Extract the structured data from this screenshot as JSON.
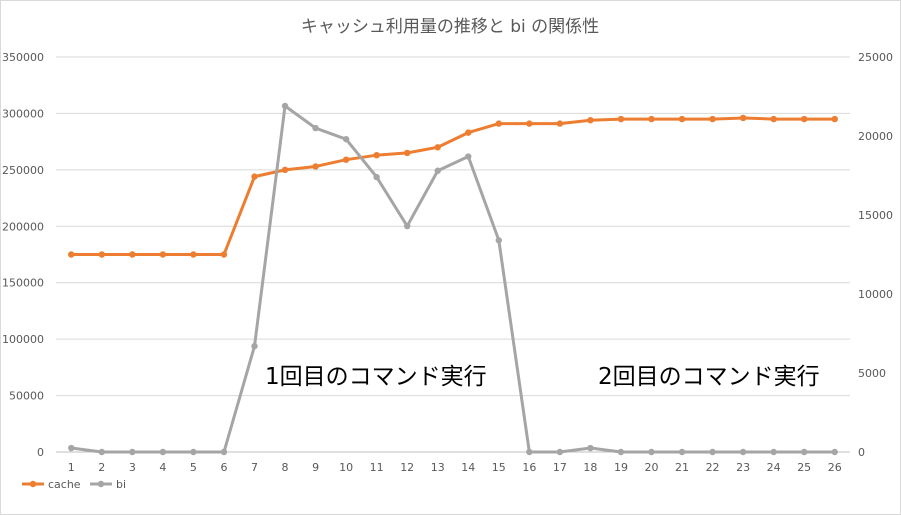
{
  "chart_data": {
    "type": "line",
    "title": "キャッシュ利用量の推移と bi の関係性",
    "x": [
      "1",
      "2",
      "3",
      "4",
      "5",
      "6",
      "7",
      "8",
      "9",
      "10",
      "11",
      "12",
      "13",
      "14",
      "15",
      "16",
      "17",
      "18",
      "19",
      "20",
      "21",
      "22",
      "23",
      "24",
      "25",
      "26"
    ],
    "series": [
      {
        "name": "cache",
        "axis": "left",
        "color": "#ED7D31",
        "values": [
          175000,
          175000,
          175000,
          175000,
          175000,
          175000,
          244000,
          250000,
          253000,
          259000,
          263000,
          265000,
          270000,
          283000,
          291000,
          291000,
          291000,
          294000,
          295000,
          295000,
          295000,
          295000,
          296000,
          295000,
          295000,
          295000
        ]
      },
      {
        "name": "bi",
        "axis": "right",
        "color": "#A5A5A5",
        "values": [
          250,
          0,
          0,
          0,
          0,
          0,
          6700,
          21900,
          20500,
          19800,
          17400,
          14300,
          17800,
          18700,
          13400,
          0,
          0,
          250,
          0,
          0,
          0,
          0,
          0,
          0,
          0,
          0
        ]
      }
    ],
    "y_left": {
      "min": 0,
      "max": 350000,
      "ticks": [
        "0",
        "50000",
        "100000",
        "150000",
        "200000",
        "250000",
        "300000",
        "350000"
      ]
    },
    "y_right": {
      "min": 0,
      "max": 25000,
      "ticks": [
        "0",
        "5000",
        "10000",
        "15000",
        "20000",
        "25000"
      ]
    },
    "gridlines": true,
    "legend_position": "bottom-left",
    "annotations": [
      "1回目のコマンド実行",
      "2回目のコマンド実行"
    ]
  }
}
